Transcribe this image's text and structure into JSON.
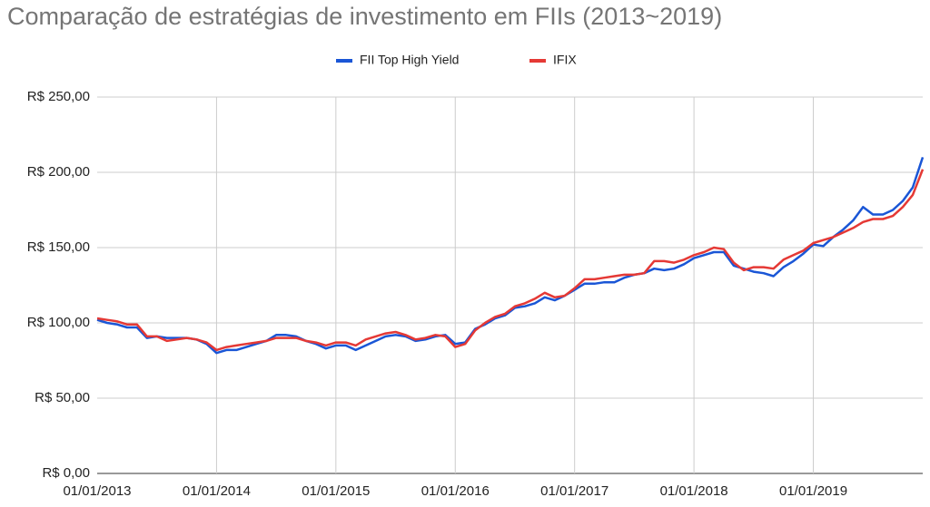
{
  "chart_data": {
    "type": "line",
    "title": "Comparação de estratégias de investimento em FIIs (2013~2019)",
    "categories": [
      "01/01/2013",
      null,
      null,
      null,
      null,
      null,
      null,
      null,
      null,
      null,
      null,
      null,
      "01/01/2014",
      null,
      null,
      null,
      null,
      null,
      null,
      null,
      null,
      null,
      null,
      null,
      "01/01/2015",
      null,
      null,
      null,
      null,
      null,
      null,
      null,
      null,
      null,
      null,
      null,
      "01/01/2016",
      null,
      null,
      null,
      null,
      null,
      null,
      null,
      null,
      null,
      null,
      null,
      "01/01/2017",
      null,
      null,
      null,
      null,
      null,
      null,
      null,
      null,
      null,
      null,
      null,
      "01/01/2018",
      null,
      null,
      null,
      null,
      null,
      null,
      null,
      null,
      null,
      null,
      null,
      "01/01/2019",
      null,
      null,
      null,
      null,
      null,
      null,
      null,
      null,
      null,
      null,
      null
    ],
    "series": [
      {
        "name": "FII Top High Yield",
        "color": "#1a56d6",
        "values": [
          102,
          100,
          99,
          97,
          97,
          90,
          91,
          90,
          90,
          90,
          89,
          86,
          80,
          82,
          82,
          84,
          86,
          88,
          92,
          92,
          91,
          88,
          86,
          83,
          85,
          85,
          82,
          85,
          88,
          91,
          92,
          91,
          88,
          89,
          91,
          92,
          86,
          87,
          96,
          99,
          103,
          105,
          110,
          111,
          113,
          117,
          115,
          118,
          122,
          126,
          126,
          127,
          127,
          130,
          132,
          133,
          136,
          135,
          136,
          139,
          143,
          145,
          147,
          147,
          138,
          136,
          134,
          133,
          131,
          137,
          141,
          146,
          152,
          151,
          157,
          162,
          168,
          177,
          172,
          172,
          175,
          181,
          190,
          210
        ]
      },
      {
        "name": "IFIX",
        "color": "#e53935",
        "values": [
          103,
          102,
          101,
          99,
          99,
          91,
          91,
          88,
          89,
          90,
          89,
          87,
          82,
          84,
          85,
          86,
          87,
          88,
          90,
          90,
          90,
          88,
          87,
          85,
          87,
          87,
          85,
          89,
          91,
          93,
          94,
          92,
          89,
          90,
          92,
          91,
          84,
          86,
          95,
          100,
          104,
          106,
          111,
          113,
          116,
          120,
          117,
          118,
          123,
          129,
          129,
          130,
          131,
          132,
          132,
          133,
          141,
          141,
          140,
          142,
          145,
          147,
          150,
          149,
          140,
          135,
          137,
          137,
          136,
          142,
          145,
          148,
          153,
          155,
          157,
          160,
          163,
          167,
          169,
          169,
          171,
          177,
          185,
          202
        ]
      }
    ],
    "ylim": [
      0,
      250
    ],
    "yticks": [
      {
        "value": 0,
        "label": "R$ 0,00"
      },
      {
        "value": 50,
        "label": "R$ 50,00"
      },
      {
        "value": 100,
        "label": "R$ 100,00"
      },
      {
        "value": 150,
        "label": "R$ 150,00"
      },
      {
        "value": 200,
        "label": "R$ 200,00"
      },
      {
        "value": 250,
        "label": "R$ 250,00"
      }
    ],
    "grid": true
  }
}
